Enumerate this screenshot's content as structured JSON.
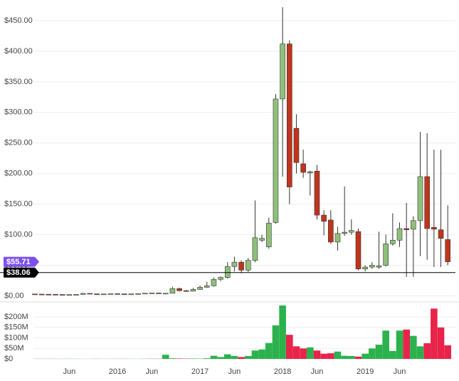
{
  "chart_data": {
    "type": "candlestick",
    "x": [
      "2015-01",
      "2015-02",
      "2015-03",
      "2015-04",
      "2015-05",
      "2015-06",
      "2015-07",
      "2015-08",
      "2015-09",
      "2015-10",
      "2015-11",
      "2015-12",
      "2016-01",
      "2016-02",
      "2016-03",
      "2016-04",
      "2016-05",
      "2016-06",
      "2016-07",
      "2016-08",
      "2016-09",
      "2016-10",
      "2016-11",
      "2016-12",
      "2017-01",
      "2017-02",
      "2017-03",
      "2017-04",
      "2017-05",
      "2017-06",
      "2017-07",
      "2017-08",
      "2017-09",
      "2017-10",
      "2017-11",
      "2017-12",
      "2018-01",
      "2018-02",
      "2018-03",
      "2018-04",
      "2018-05",
      "2018-06",
      "2018-07",
      "2018-08",
      "2018-09",
      "2018-10",
      "2018-11",
      "2018-12",
      "2019-01",
      "2019-02",
      "2019-03",
      "2019-04",
      "2019-05",
      "2019-06",
      "2019-07",
      "2019-08",
      "2019-09",
      "2019-10",
      "2019-11",
      "2019-12",
      "2020-01"
    ],
    "open": [
      3.0,
      2.8,
      2.6,
      2.5,
      2.2,
      1.9,
      2.0,
      2.3,
      4.0,
      3.2,
      3.0,
      3.1,
      3.5,
      3.2,
      3.0,
      3.2,
      3.6,
      4.2,
      4.7,
      3.9,
      4.2,
      11.8,
      8.4,
      7.6,
      10.5,
      14,
      16.5,
      27,
      30,
      48,
      55,
      42,
      58,
      91,
      80,
      120,
      322,
      412,
      274,
      216,
      201,
      204,
      132,
      124,
      88,
      102,
      104,
      105,
      44,
      47,
      47,
      50,
      85,
      91,
      110,
      109,
      123,
      195,
      112,
      108,
      92
    ],
    "high": [
      3.1,
      2.9,
      2.8,
      2.6,
      2.3,
      2.1,
      2.5,
      4.8,
      4.1,
      3.3,
      3.2,
      3.6,
      3.6,
      3.3,
      3.3,
      3.7,
      4.3,
      4.9,
      4.8,
      4.6,
      15,
      13.5,
      9.8,
      13,
      17,
      23,
      30,
      32,
      55,
      64,
      58,
      62,
      156,
      100,
      128,
      330,
      472,
      418,
      297,
      239,
      205,
      214,
      140,
      140,
      113,
      179,
      125,
      110,
      50,
      55,
      105,
      100,
      135,
      120,
      152,
      130,
      268,
      266,
      239,
      239,
      148
    ],
    "low": [
      2.6,
      2.5,
      2.3,
      2.1,
      1.8,
      1.8,
      1.9,
      2.2,
      2.9,
      2.8,
      2.9,
      3.0,
      3.1,
      2.9,
      2.9,
      3.1,
      3.5,
      4.0,
      3.6,
      3.6,
      4.0,
      7.2,
      6.8,
      7.1,
      9.8,
      13,
      15,
      24,
      28,
      40,
      37,
      39,
      55,
      88,
      77,
      118,
      195,
      150,
      200,
      193,
      164,
      125,
      99,
      85,
      74,
      98,
      100,
      42,
      40,
      44,
      44,
      48,
      82,
      80,
      31,
      31,
      65,
      59,
      47,
      47,
      50
    ],
    "close": [
      2.8,
      2.6,
      2.5,
      2.2,
      1.9,
      2.0,
      2.3,
      4.0,
      3.2,
      3.0,
      3.1,
      3.5,
      3.2,
      3.0,
      3.2,
      3.6,
      4.2,
      4.7,
      3.9,
      4.2,
      11.8,
      8.4,
      7.6,
      10.5,
      14,
      16.5,
      27,
      30,
      48,
      55,
      42,
      58,
      95,
      94,
      119,
      322,
      412,
      178,
      218,
      202,
      203,
      132,
      122,
      88,
      102,
      104,
      107,
      44,
      47,
      50,
      49,
      85,
      91,
      110,
      108,
      123,
      195,
      110,
      109,
      94,
      55.71
    ],
    "volume": [
      500000,
      400000,
      600000,
      500000,
      400000,
      800000,
      500000,
      400000,
      300000,
      600000,
      500000,
      400000,
      500000,
      600000,
      500000,
      400000,
      700000,
      1000000,
      800000,
      20000000,
      3000000,
      2000000,
      1500000,
      2000000,
      1500000,
      3000000,
      15000000,
      9000000,
      22000000,
      14000000,
      9000000,
      14000000,
      40000000,
      45000000,
      76000000,
      160000000,
      255000000,
      115000000,
      60000000,
      50000000,
      55000000,
      40000000,
      25000000,
      27000000,
      35000000,
      15000000,
      14000000,
      11000000,
      25000000,
      50000000,
      68000000,
      135000000,
      38000000,
      135000000,
      140000000,
      110000000,
      60000000,
      75000000,
      240000000,
      150000000,
      65000000
    ],
    "ylim": [
      -10,
      478
    ],
    "yticks": [
      {
        "value": 0,
        "label": "$0.00"
      },
      {
        "value": 50,
        "label": "$50.00"
      },
      {
        "value": 100,
        "label": "$100.00"
      },
      {
        "value": 150,
        "label": "$150.00"
      },
      {
        "value": 200,
        "label": "$200.00"
      },
      {
        "value": 250,
        "label": "$250.00"
      },
      {
        "value": 300,
        "label": "$300.00"
      },
      {
        "value": 350,
        "label": "$350.00"
      },
      {
        "value": 400,
        "label": "$400.00"
      },
      {
        "value": 450,
        "label": "$450.00"
      }
    ],
    "vlim": [
      0,
      258000000
    ],
    "vticks": [
      {
        "value": 0,
        "label": "$0"
      },
      {
        "value": 50000000,
        "label": "$50M"
      },
      {
        "value": 100000000,
        "label": "$100M"
      },
      {
        "value": 150000000,
        "label": "$150M"
      },
      {
        "value": 200000000,
        "label": "$200M"
      }
    ],
    "xticks": [
      {
        "value": "2015-06",
        "label": "Jun"
      },
      {
        "value": "2016-01",
        "label": "2016"
      },
      {
        "value": "2016-06",
        "label": "Jun"
      },
      {
        "value": "2017-01",
        "label": "2017"
      },
      {
        "value": "2017-06",
        "label": "Jun"
      },
      {
        "value": "2018-01",
        "label": "2018"
      },
      {
        "value": "2018-06",
        "label": "Jun"
      },
      {
        "value": "2019-01",
        "label": "2019"
      },
      {
        "value": "2019-06",
        "label": "Jun"
      }
    ],
    "last_price": {
      "value": 55.71,
      "label": "$55.71",
      "color": "#7b4ff0"
    },
    "price_line": {
      "value": 38.06,
      "label": "$38.06",
      "color": "#000000"
    },
    "up_color": "#8fc07a",
    "down_color": "#c0341d",
    "volume_up_color": "#2cb24d",
    "volume_down_color": "#e8244b",
    "grid": true
  }
}
